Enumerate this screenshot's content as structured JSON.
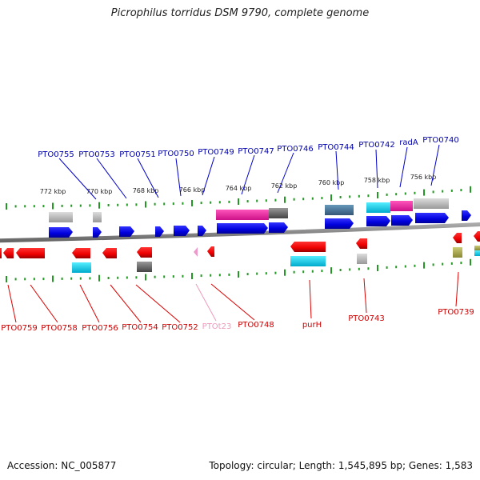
{
  "title": "Picrophilus torridus DSM 9790, complete genome",
  "footer": {
    "accession": "Accession: NC_005877",
    "topology": "Topology: circular; Length: 1,545,895 bp; Genes: 1,583"
  },
  "colors": {
    "forward_gene": "#0000ee",
    "reverse_gene": "#ee0000",
    "forward_label": "#0000aa",
    "reverse_label": "#cc0000",
    "trna_label": "#ee99bb",
    "tick": "#229922",
    "backbone": "#888888"
  },
  "scale_labels": [
    "772 kbp",
    "770 kbp",
    "768 kbp",
    "766 kbp",
    "764 kbp",
    "762 kbp",
    "760 kbp",
    "758 kbp",
    "756 kbp"
  ],
  "top_labels": [
    "PTO0755",
    "PTO0753",
    "PTO0751",
    "PTO0750",
    "PTO0749",
    "PTO0747",
    "PTO0746",
    "PTO0744",
    "PTO0742",
    "radA",
    "PTO0740"
  ],
  "bottom_labels": [
    "PTO0759",
    "PTO0758",
    "PTO0756",
    "PTO0754",
    "PTO0752",
    "PTOt23",
    "PTO0748",
    "purH",
    "PTO0743",
    "PTO0739"
  ]
}
